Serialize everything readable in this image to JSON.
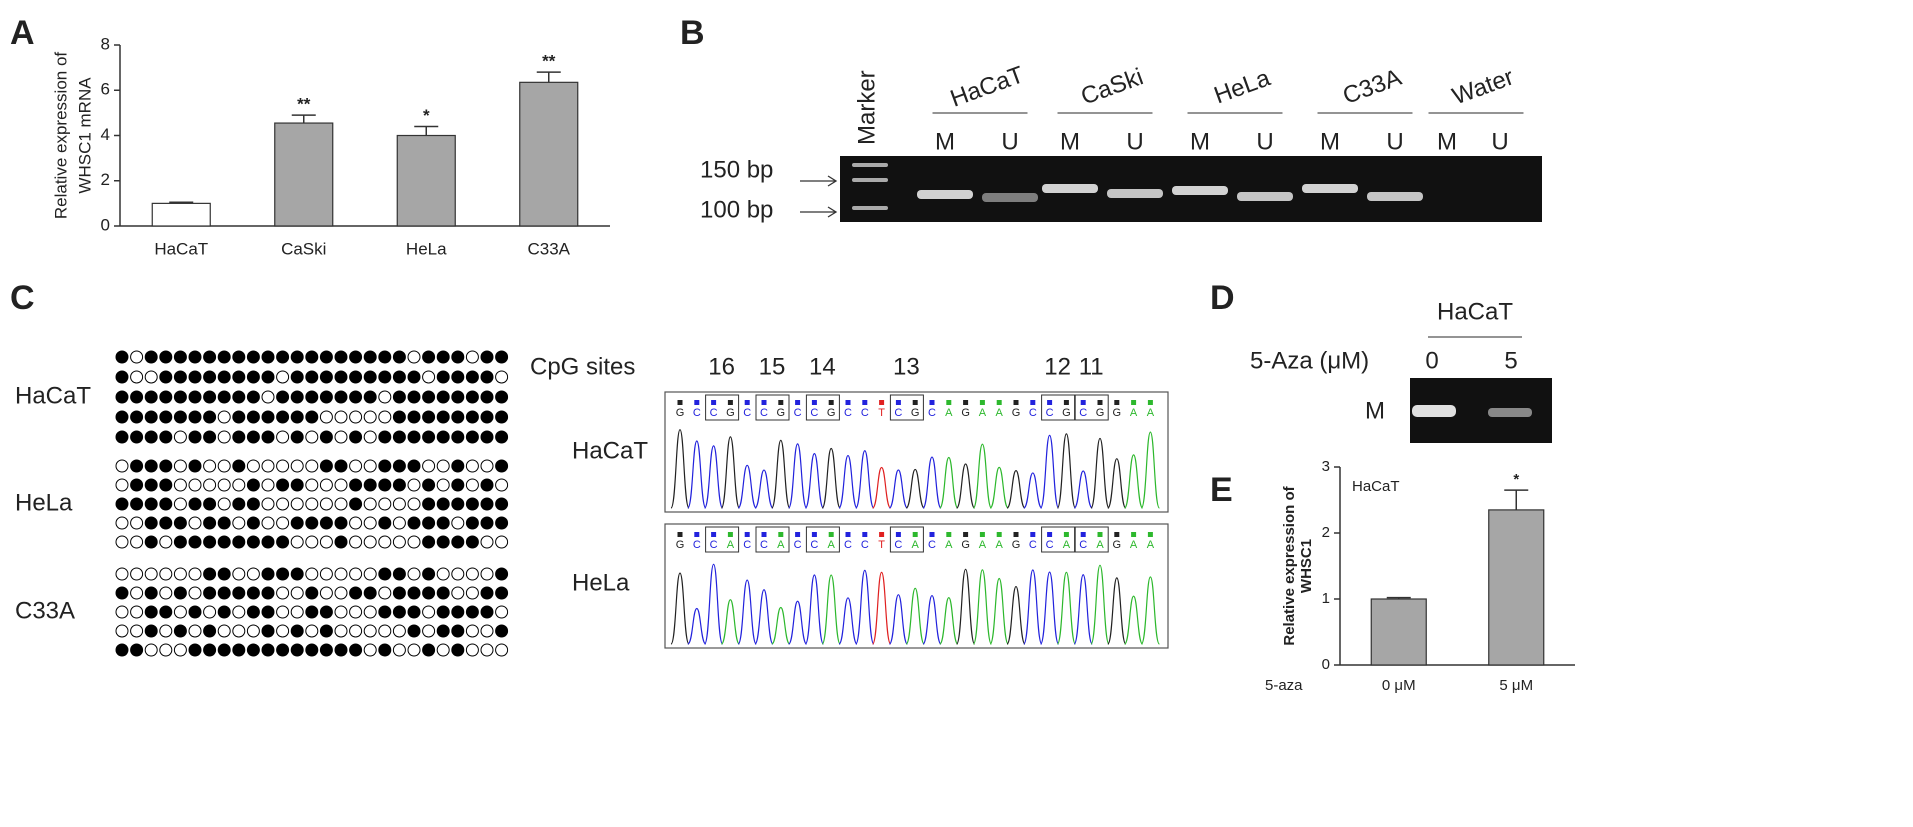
{
  "chart_data": [
    {
      "type": "bar",
      "label": "A",
      "ylabel": [
        "Relative expression of",
        "WHSC1 mRNA"
      ],
      "categories": [
        "HaCaT",
        "CaSki",
        "HeLa",
        "C33A"
      ],
      "values": [
        1,
        4.55,
        4.0,
        6.35
      ],
      "errors": [
        0.05,
        0.35,
        0.4,
        0.45
      ],
      "significance": [
        null,
        "**",
        "*",
        "**"
      ],
      "colors": [
        "#ffffff",
        "#a6a6a6",
        "#a6a6a6",
        "#a6a6a6"
      ],
      "ylim": [
        0,
        8
      ],
      "yticks": [
        0,
        2,
        4,
        6,
        8
      ]
    },
    {
      "type": "bar",
      "label": "E",
      "title": "HaCaT",
      "xlabel": "5-aza",
      "ylabel": [
        "Relative expression of",
        "WHSC1"
      ],
      "categories": [
        "0 μM",
        "5 μM"
      ],
      "values": [
        1,
        2.35
      ],
      "errors": [
        0.02,
        0.3
      ],
      "significance": [
        null,
        "*"
      ],
      "colors": [
        "#a6a6a6",
        "#a6a6a6"
      ],
      "ylim": [
        0,
        3
      ],
      "yticks": [
        0,
        1,
        2,
        3
      ]
    }
  ],
  "panel_b": {
    "label": "B",
    "marker": "Marker",
    "sizes": [
      "150 bp",
      "100 bp"
    ],
    "lanes": [
      {
        "name": "HaCaT",
        "bands": [
          "M",
          "U"
        ]
      },
      {
        "name": "CaSki",
        "bands": [
          "M",
          "U"
        ]
      },
      {
        "name": "HeLa",
        "bands": [
          "M",
          "U"
        ]
      },
      {
        "name": "C33A",
        "bands": [
          "M",
          "U"
        ]
      },
      {
        "name": "Water",
        "bands": [
          "M",
          "U"
        ]
      }
    ]
  },
  "panel_c": {
    "label": "C",
    "samples": [
      "HaCaT",
      "HeLa",
      "C33A"
    ],
    "cpg_label": "CpG sites",
    "cpg_sites": [
      "16",
      "15",
      "14",
      "13",
      "12",
      "11"
    ],
    "traces": [
      {
        "name": "HaCaT",
        "sequence": [
          "G",
          "C",
          "C",
          "G",
          "C",
          "C",
          "G",
          "C",
          "C",
          "G",
          "C",
          "C",
          "T",
          "C",
          "G",
          "C",
          "A",
          "G",
          "A",
          "A",
          "G",
          "C",
          "C",
          "G",
          "C",
          "G",
          "G",
          "A",
          "A"
        ]
      },
      {
        "name": "HeLa",
        "sequence": [
          "G",
          "C",
          "C",
          "A",
          "C",
          "C",
          "A",
          "C",
          "C",
          "A",
          "C",
          "C",
          "T",
          "C",
          "A",
          "C",
          "A",
          "G",
          "A",
          "A",
          "G",
          "C",
          "C",
          "A",
          "C",
          "A",
          "G",
          "A",
          "A"
        ]
      }
    ]
  },
  "panel_d": {
    "label": "D",
    "cell": "HaCaT",
    "treatment": "5-Aza (μM)",
    "doses": [
      "0",
      "5"
    ],
    "lane": "M"
  }
}
